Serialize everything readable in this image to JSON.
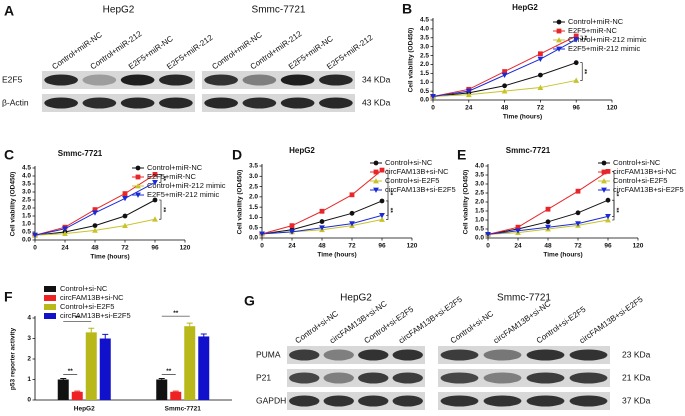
{
  "blots": [
    {
      "label": "A",
      "groups": [
        "HepG2",
        "Smmc-7721"
      ],
      "lanes": [
        "Control+miR-NC",
        "Control+miR-212",
        "E2F5+miR-NC",
        "E2F5+miR-212"
      ],
      "rows": [
        "E2F5",
        "β-Actin"
      ],
      "sizes": [
        "34 KDa",
        "43 KDa"
      ]
    },
    {
      "label": "G",
      "groups": [
        "HepG2",
        "Smmc-7721"
      ],
      "lanes": [
        "Control+si-NC",
        "circFAM13B+si-NC",
        "Control+si-E2F5",
        "circFAM13B+si-E2F5"
      ],
      "rows": [
        "PUMA",
        "P21",
        "GAPDH"
      ],
      "sizes": [
        "23 KDa",
        "21 KDa",
        "37 KDa"
      ]
    }
  ],
  "chart_data": [
    {
      "label": "B",
      "type": "line",
      "title": "HepG2",
      "xlabel": "Time (hours)",
      "ylabel": "Cell viability (OD450)",
      "x": [
        0,
        24,
        48,
        72,
        96
      ],
      "xlim": [
        0,
        120
      ],
      "xticks": [
        0,
        24,
        48,
        72,
        96,
        120
      ],
      "ylim": [
        0,
        4.5
      ],
      "yticks": [
        {
          "value": 0,
          "label": "0.0"
        },
        0.5,
        {
          "value": 1,
          "label": "1.0"
        },
        1.5,
        {
          "value": 2,
          "label": "2.0"
        },
        2.5,
        {
          "value": 3,
          "label": "3.0"
        },
        3.5,
        {
          "value": 4,
          "label": "4.0"
        },
        4.5
      ],
      "series": [
        {
          "name": "Control+miR-NC",
          "color": "#111111",
          "marker": "circle",
          "values": [
            0.2,
            0.4,
            0.8,
            1.4,
            2.1
          ]
        },
        {
          "name": "E2F5+miR-NC",
          "color": "#e8262a",
          "marker": "square",
          "values": [
            0.2,
            0.6,
            1.6,
            2.6,
            3.6
          ]
        },
        {
          "name": "Control+miR-212 mimic",
          "color": "#c8c32a",
          "marker": "triangle",
          "values": [
            0.2,
            0.3,
            0.5,
            0.7,
            1.1
          ]
        },
        {
          "name": "E2F5+miR-212 mimic",
          "color": "#1a2bd6",
          "marker": "down",
          "values": [
            0.2,
            0.5,
            1.4,
            2.3,
            3.4
          ]
        }
      ],
      "annotations": [
        "**",
        "**"
      ]
    },
    {
      "label": "C",
      "type": "line",
      "title": "Smmc-7721",
      "xlabel": "Time (hours)",
      "ylabel": "Cell viability (OD450)",
      "x": [
        0,
        24,
        48,
        72,
        96
      ],
      "xlim": [
        0,
        120
      ],
      "xticks": [
        0,
        24,
        48,
        72,
        96,
        120
      ],
      "ylim": [
        0,
        4.5
      ],
      "yticks": [
        {
          "value": 0,
          "label": "0.0"
        },
        0.5,
        {
          "value": 1,
          "label": "1.0"
        },
        1.5,
        {
          "value": 2,
          "label": "2.0"
        },
        2.5,
        {
          "value": 3,
          "label": "3.0"
        },
        3.5,
        {
          "value": 4,
          "label": "4.0"
        },
        4.5
      ],
      "series": [
        {
          "name": "Control+miR-NC",
          "color": "#111111",
          "marker": "circle",
          "values": [
            0.3,
            0.5,
            0.9,
            1.5,
            2.5
          ]
        },
        {
          "name": "E2F5+miR-NC",
          "color": "#e8262a",
          "marker": "square",
          "values": [
            0.3,
            0.8,
            1.9,
            2.9,
            4.1
          ]
        },
        {
          "name": "Control+miR-212 mimic",
          "color": "#c8c32a",
          "marker": "triangle",
          "values": [
            0.3,
            0.4,
            0.6,
            0.9,
            1.3
          ]
        },
        {
          "name": "E2F5+miR-212 mimic",
          "color": "#1a2bd6",
          "marker": "down",
          "values": [
            0.3,
            0.7,
            1.7,
            2.6,
            3.6
          ]
        }
      ],
      "annotations": [
        "**",
        "**"
      ]
    },
    {
      "label": "D",
      "type": "line",
      "title": "HepG2",
      "xlabel": "Time (hours)",
      "ylabel": "Cell viability (OD450)",
      "x": [
        0,
        24,
        48,
        72,
        96
      ],
      "xlim": [
        0,
        120
      ],
      "xticks": [
        0,
        24,
        48,
        72,
        96,
        120
      ],
      "ylim": [
        0,
        3.5
      ],
      "yticks": [
        {
          "value": 0,
          "label": "0.0"
        },
        0.5,
        {
          "value": 1,
          "label": "1.0"
        },
        1.5,
        {
          "value": 2,
          "label": "2.0"
        },
        2.5,
        {
          "value": 3,
          "label": "3.0"
        },
        3.5
      ],
      "series": [
        {
          "name": "Control+si-NC",
          "color": "#111111",
          "marker": "circle",
          "values": [
            0.2,
            0.4,
            0.8,
            1.2,
            1.8
          ]
        },
        {
          "name": "circFAM13B+si-NC",
          "color": "#e8262a",
          "marker": "square",
          "values": [
            0.2,
            0.6,
            1.3,
            2.1,
            3.3
          ]
        },
        {
          "name": "Control+si-E2F5",
          "color": "#c8c32a",
          "marker": "triangle",
          "values": [
            0.2,
            0.3,
            0.4,
            0.6,
            0.9
          ]
        },
        {
          "name": "circFAM13B+si-E2F5",
          "color": "#1a2bd6",
          "marker": "down",
          "values": [
            0.2,
            0.3,
            0.5,
            0.7,
            1.1
          ]
        }
      ],
      "annotations": [
        "**",
        "**"
      ]
    },
    {
      "label": "E",
      "type": "line",
      "title": "Smmc-7721",
      "xlabel": "Time (hours)",
      "ylabel": "Cell viability (OD450)",
      "x": [
        0,
        24,
        48,
        72,
        96
      ],
      "xlim": [
        0,
        120
      ],
      "xticks": [
        0,
        24,
        48,
        72,
        96,
        120
      ],
      "ylim": [
        0,
        4
      ],
      "yticks": [
        {
          "value": 0,
          "label": "0.0"
        },
        0.5,
        {
          "value": 1,
          "label": "1.0"
        },
        1.5,
        {
          "value": 2,
          "label": "2.0"
        },
        2.5,
        {
          "value": 3,
          "label": "3.0"
        },
        3.5,
        {
          "value": 4,
          "label": "4.0"
        }
      ],
      "series": [
        {
          "name": "Control+si-NC",
          "color": "#111111",
          "marker": "circle",
          "values": [
            0.2,
            0.5,
            0.9,
            1.4,
            2.1
          ]
        },
        {
          "name": "circFAM13B+si-NC",
          "color": "#e8262a",
          "marker": "square",
          "values": [
            0.2,
            0.6,
            1.6,
            2.6,
            3.7
          ]
        },
        {
          "name": "Control+si-E2F5",
          "color": "#c8c32a",
          "marker": "triangle",
          "values": [
            0.2,
            0.3,
            0.5,
            0.7,
            1.0
          ]
        },
        {
          "name": "circFAM13B+si-E2F5",
          "color": "#1a2bd6",
          "marker": "down",
          "values": [
            0.2,
            0.4,
            0.6,
            0.8,
            1.2
          ]
        }
      ],
      "annotations": [
        "**",
        "**"
      ]
    },
    {
      "label": "F",
      "type": "bar",
      "ylabel": "p53 reporter activity",
      "categories": [
        "HepG2",
        "Smmc-7721"
      ],
      "ylim": [
        0,
        4
      ],
      "yticks": [
        0,
        1,
        2,
        3,
        4
      ],
      "series": [
        {
          "name": "Control+si-NC",
          "color": "#111111",
          "values": [
            1.0,
            1.0
          ],
          "errors": [
            0.05,
            0.05
          ]
        },
        {
          "name": "circFAM13B+si-NC",
          "color": "#ee2222",
          "values": [
            0.4,
            0.4
          ],
          "errors": [
            0.03,
            0.03
          ]
        },
        {
          "name": "Control+si-E2F5",
          "color": "#b8b81a",
          "values": [
            3.3,
            3.6
          ],
          "errors": [
            0.2,
            0.15
          ]
        },
        {
          "name": "circFAM13B+si-E2F5",
          "color": "#1111cc",
          "values": [
            3.0,
            3.1
          ],
          "errors": [
            0.2,
            0.12
          ]
        }
      ],
      "annotations": [
        "**",
        "**",
        "**",
        "**"
      ]
    }
  ]
}
